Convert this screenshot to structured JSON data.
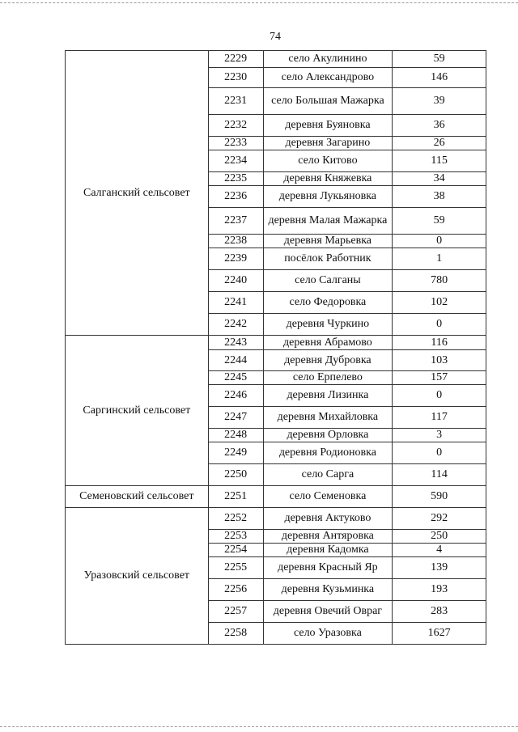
{
  "page_number": "74",
  "groups": [
    {
      "name": "Салганский сельсовет",
      "rows": [
        [
          "2229",
          "село Акулинино",
          "59"
        ],
        [
          "2230",
          "село Александрово",
          "146"
        ],
        [
          "2231",
          "село Большая Мажарка",
          "39"
        ],
        [
          "2232",
          "деревня Буяновка",
          "36"
        ],
        [
          "2233",
          "деревня Загарино",
          "26"
        ],
        [
          "2234",
          "село Китово",
          "115"
        ],
        [
          "2235",
          "деревня Княжевка",
          "34"
        ],
        [
          "2236",
          "деревня Лукьяновка",
          "38"
        ],
        [
          "2237",
          "деревня Малая Мажарка",
          "59"
        ],
        [
          "2238",
          "деревня Марьевка",
          "0"
        ],
        [
          "2239",
          "посёлок Работник",
          "1"
        ],
        [
          "2240",
          "село Салганы",
          "780"
        ],
        [
          "2241",
          "село Федоровка",
          "102"
        ],
        [
          "2242",
          "деревня Чуркино",
          "0"
        ]
      ]
    },
    {
      "name": "Саргинский сельсовет",
      "rows": [
        [
          "2243",
          "деревня Абрамово",
          "116"
        ],
        [
          "2244",
          "деревня Дубровка",
          "103"
        ],
        [
          "2245",
          "село Ерпелево",
          "157"
        ],
        [
          "2246",
          "деревня Лизинка",
          "0"
        ],
        [
          "2247",
          "деревня Михайловка",
          "117"
        ],
        [
          "2248",
          "деревня Орловка",
          "3"
        ],
        [
          "2249",
          "деревня Родионовка",
          "0"
        ],
        [
          "2250",
          "село Сарга",
          "114"
        ]
      ]
    },
    {
      "name": "Семеновский сельсовет",
      "rows": [
        [
          "2251",
          "село Семеновка",
          "590"
        ]
      ]
    },
    {
      "name": "Уразовский сельсовет",
      "rows": [
        [
          "2252",
          "деревня Актуково",
          "292"
        ],
        [
          "2253",
          "деревня Антяровка",
          "250"
        ],
        [
          "2254",
          "деревня Кадомка",
          "4"
        ],
        [
          "2255",
          "деревня Красный Яр",
          "139"
        ],
        [
          "2256",
          "деревня Кузьминка",
          "193"
        ],
        [
          "2257",
          "деревня Овечий Овраг",
          "283"
        ],
        [
          "2258",
          "село Уразовка",
          "1627"
        ]
      ]
    }
  ]
}
